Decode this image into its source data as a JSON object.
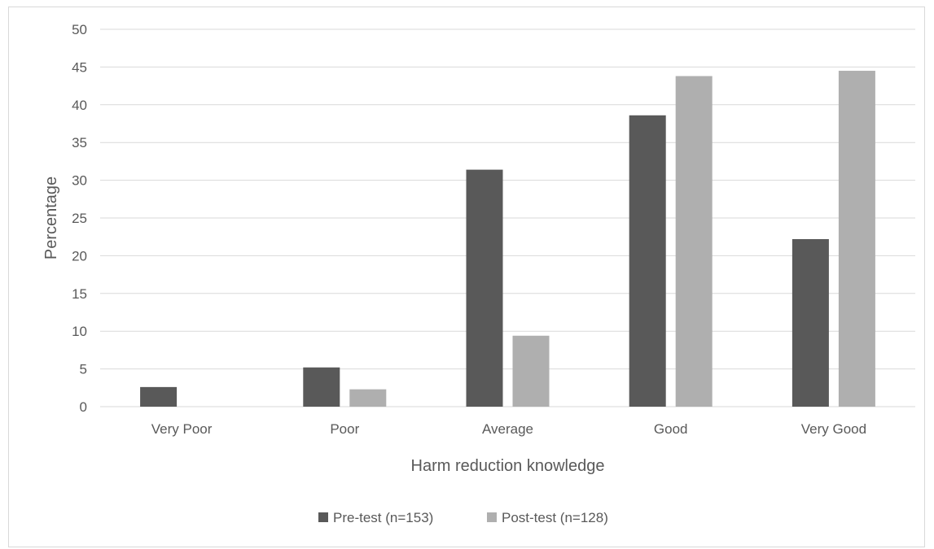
{
  "chart_data": {
    "type": "bar",
    "title": "",
    "xlabel": "Harm reduction knowledge",
    "ylabel": "Percentage",
    "categories": [
      "Very Poor",
      "Poor",
      "Average",
      "Good",
      "Very Good"
    ],
    "series": [
      {
        "name": "Pre-test (n=153)",
        "color": "#595959",
        "values": [
          2.6,
          5.2,
          31.4,
          38.6,
          22.2
        ]
      },
      {
        "name": "Post-test (n=128)",
        "color": "#afafaf",
        "values": [
          0,
          2.3,
          9.4,
          43.8,
          44.5
        ]
      }
    ],
    "ylim": [
      0,
      50
    ],
    "yticks": [
      "0",
      "5",
      "10",
      "15",
      "20",
      "25",
      "30",
      "35",
      "40",
      "45",
      "50"
    ],
    "grid": true,
    "legend": "bottom"
  }
}
